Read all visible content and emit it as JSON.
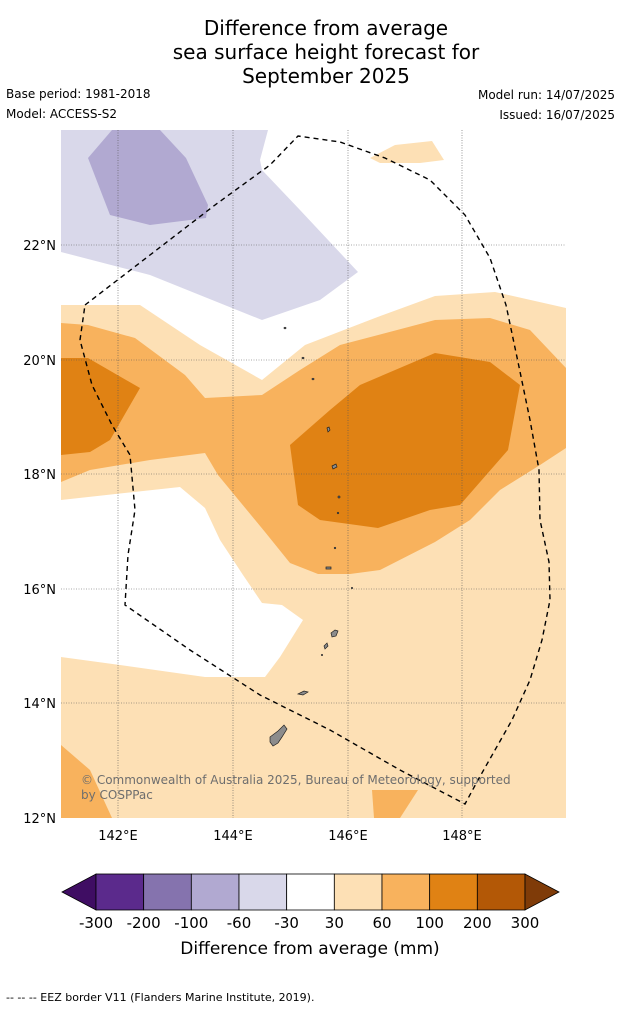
{
  "title": {
    "line1": "Difference from average",
    "line2": "sea surface height forecast for",
    "line3": "September 2025"
  },
  "meta": {
    "base_period": "Base period: 1981-2018",
    "model": "Model: ACCESS-S2",
    "model_run": "Model run: 14/07/2025",
    "issued": "Issued: 16/07/2025"
  },
  "map": {
    "lat_ticks": [
      "22°N",
      "20°N",
      "18°N",
      "16°N",
      "14°N",
      "12°N"
    ],
    "lon_ticks": [
      "142°E",
      "144°E",
      "146°E",
      "148°E"
    ],
    "lon_range": [
      141,
      149.8
    ],
    "lat_range": [
      12,
      24.0
    ],
    "gridlines": true,
    "boundary": "EEZ border (dashed)",
    "credit_line1": "© Commonwealth of Australia 2025, Bureau of Meteorology, supported",
    "credit_line2": "by COSPPac"
  },
  "colorbar": {
    "labels": [
      "-300",
      "-200",
      "-100",
      "-60",
      "-30",
      "30",
      "60",
      "100",
      "200",
      "300"
    ],
    "colors": [
      "#3f0d63",
      "#5b2a8c",
      "#8573ae",
      "#b1a9d1",
      "#d9d8ea",
      "#ffffff",
      "#fde0b5",
      "#f8b25d",
      "#e08214",
      "#b35806",
      "#7f3b08"
    ],
    "title": "Difference from average (mm)"
  },
  "footer": "--  --  -- EEZ border V11 (Flanders Marine Institute, 2019)."
}
